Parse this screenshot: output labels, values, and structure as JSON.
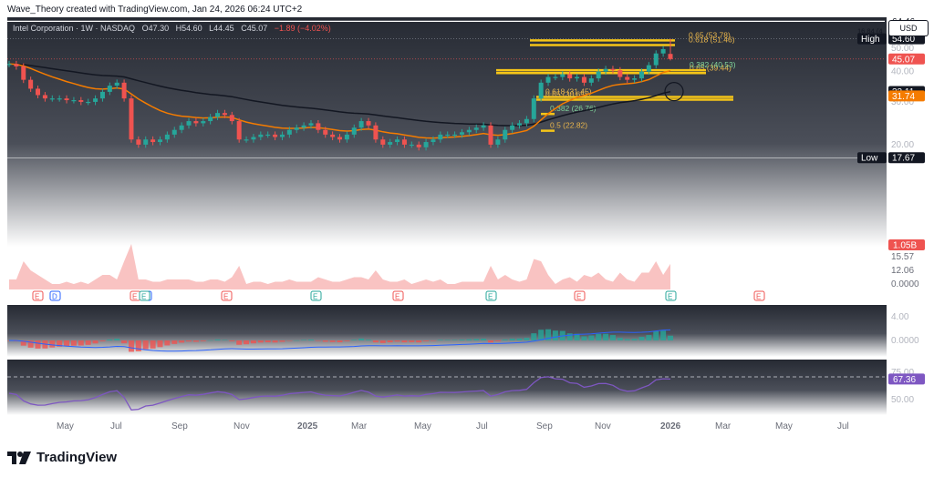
{
  "header": {
    "caption": "Wave_Theory created with TradingView.com, Jan 24, 2026 06:24 UTC+2"
  },
  "symbol": {
    "name": "Intel Corporation · 1W · NASDAQ",
    "open": "O47.30",
    "high": "H54.60",
    "low": "L44.45",
    "close": "C45.07",
    "change": "−1.89 (−4.02%)"
  },
  "currency_button": "USD",
  "brand": {
    "name": "TradingView",
    "icon": "tradingview-logo-icon"
  },
  "colors": {
    "up": "#26a69a",
    "down": "#ef5350",
    "ema_long": "#131722",
    "ema_short": "#f57c00",
    "fib_band": "#f5c518",
    "rsi": "#7e57c2"
  },
  "chart_data": {
    "type": "candlestick",
    "timeframe": "1W",
    "x_axis_labels": [
      "May",
      "Jul",
      "Sep",
      "Nov",
      "2025",
      "Mar",
      "May",
      "Jul",
      "Sep",
      "Nov",
      "2026",
      "Mar",
      "May",
      "Jul"
    ],
    "price_axis_ticks": [
      60,
      50,
      40,
      30,
      20
    ],
    "ylim": [
      17,
      76
    ],
    "ohlc": {
      "open": 47.3,
      "high": 54.6,
      "low": 44.45,
      "close": 45.07
    },
    "closes": [
      43,
      42,
      37,
      34,
      32,
      31,
      31,
      31,
      30.5,
      30.5,
      30,
      30,
      31,
      33,
      35,
      36,
      31,
      21,
      20,
      21,
      20.5,
      21,
      22,
      23,
      24,
      25,
      24.5,
      25,
      26,
      27,
      26.5,
      25,
      21,
      21,
      21.5,
      22,
      22,
      21.5,
      22,
      23,
      23.5,
      24,
      24.5,
      23,
      22,
      21.5,
      21,
      22,
      23.5,
      25,
      24,
      21,
      20,
      20.5,
      21,
      20,
      20,
      19.5,
      20.5,
      21,
      22,
      22,
      22,
      22.5,
      23,
      23.5,
      24,
      20,
      21,
      23,
      24,
      24.5,
      25.5,
      31,
      36,
      38,
      38,
      39,
      37.5,
      38,
      36,
      37.5,
      40,
      41,
      40.5,
      38,
      37,
      37.5,
      40,
      42.5,
      47.5,
      49.5,
      45.07
    ],
    "markers": [
      {
        "label": "High",
        "value": 54.6
      },
      {
        "label": "Low",
        "value": 17.67
      }
    ],
    "horizontal_levels": [
      75.81,
      69.29,
      64.46,
      54.6,
      45.07,
      17.67
    ],
    "indicators": [
      {
        "name": "EMA long",
        "last": 33.11
      },
      {
        "name": "EMA short",
        "last": 31.74
      }
    ],
    "fibonacci_levels": [
      {
        "label": "0.65 (53.78)",
        "value": 53.78
      },
      {
        "label": "0.618 (51.46)",
        "value": 51.46
      },
      {
        "label": "0.65 (39.44)",
        "value": 39.44
      },
      {
        "label": "0.382 (40.53)",
        "value": 40.53
      },
      {
        "label": "0.618 (31.45)",
        "value": 31.45
      },
      {
        "label": "0.65 (30.65)",
        "value": 30.65
      },
      {
        "label": "0.382 (26.76)",
        "value": 26.76
      },
      {
        "label": "0.5 (22.82)",
        "value": 22.82
      }
    ],
    "annotations": [
      "16.84 (4"
    ],
    "volume": {
      "last": "1.05B",
      "ticks": [
        "15.57",
        "12.06",
        "0.0000"
      ]
    },
    "events": [
      "E",
      "D",
      "E",
      "D",
      "E",
      "E",
      "E",
      "E",
      "E",
      "E",
      "E",
      "E"
    ],
    "macd": {
      "ticks": [
        "4.00",
        "0.0000"
      ]
    },
    "rsi": {
      "value": 67.36,
      "ticks": [
        "75.00",
        "50.00"
      ]
    }
  }
}
